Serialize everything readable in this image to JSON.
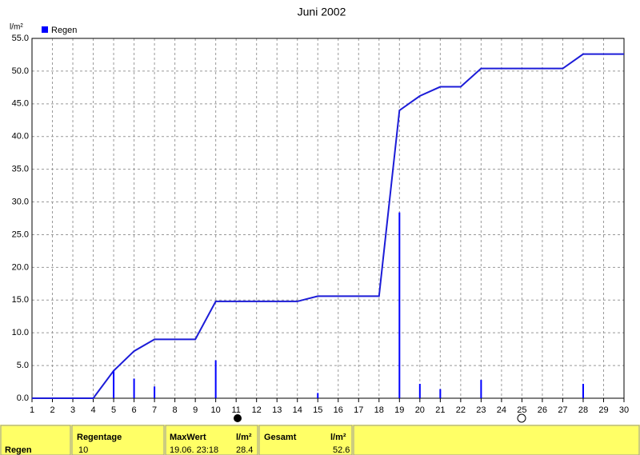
{
  "chart_data": {
    "type": "bar",
    "title": "Juni 2002",
    "y_label": "l/m²",
    "series": [
      {
        "name": "Regen",
        "color": "#0000ff",
        "x": [
          5,
          6,
          7,
          10,
          15,
          19,
          20,
          21,
          23,
          28
        ],
        "values": [
          4.2,
          3.0,
          1.8,
          5.8,
          0.8,
          28.4,
          2.2,
          1.4,
          2.8,
          2.2
        ]
      }
    ],
    "line": {
      "color": "#1c1cd8",
      "x": [
        1,
        2,
        3,
        4,
        5,
        6,
        7,
        8,
        9,
        10,
        11,
        12,
        13,
        14,
        15,
        16,
        17,
        18,
        19,
        20,
        21,
        22,
        23,
        24,
        25,
        26,
        27,
        28,
        29,
        30
      ],
      "values": [
        0,
        0,
        0,
        0,
        4.2,
        7.2,
        9.0,
        9.0,
        9.0,
        14.8,
        14.8,
        14.8,
        14.8,
        14.8,
        15.6,
        15.6,
        15.6,
        15.6,
        44.0,
        46.2,
        47.6,
        47.6,
        50.4,
        50.4,
        50.4,
        50.4,
        50.4,
        52.6,
        52.6,
        52.6
      ]
    },
    "xlim": [
      1,
      30
    ],
    "xticks": [
      1,
      2,
      3,
      4,
      5,
      6,
      7,
      8,
      9,
      10,
      11,
      12,
      13,
      14,
      15,
      16,
      17,
      18,
      19,
      20,
      21,
      22,
      23,
      24,
      25,
      26,
      27,
      28,
      29,
      30
    ],
    "ylim": [
      0,
      55
    ],
    "yticks": [
      {
        "value": 0,
        "label": "0.0"
      },
      {
        "value": 5,
        "label": "5.0"
      },
      {
        "value": 10,
        "label": "10.0"
      },
      {
        "value": 15,
        "label": "15.0"
      },
      {
        "value": 20,
        "label": "20.0"
      },
      {
        "value": 25,
        "label": "25.0"
      },
      {
        "value": 30,
        "label": "30.0"
      },
      {
        "value": 35,
        "label": "35.0"
      },
      {
        "value": 40,
        "label": "40.0"
      },
      {
        "value": 45,
        "label": "45.0"
      },
      {
        "value": 50,
        "label": "50.0"
      },
      {
        "value": 55,
        "label": "55.0"
      }
    ],
    "grid": true
  },
  "table": {
    "row_label": "Regen",
    "headers": [
      "Regentage",
      "MaxWert",
      "l/m²",
      "Gesamt",
      "l/m²"
    ],
    "values": [
      "10",
      "19.06. 23:18",
      "28.4",
      "52.6"
    ]
  }
}
